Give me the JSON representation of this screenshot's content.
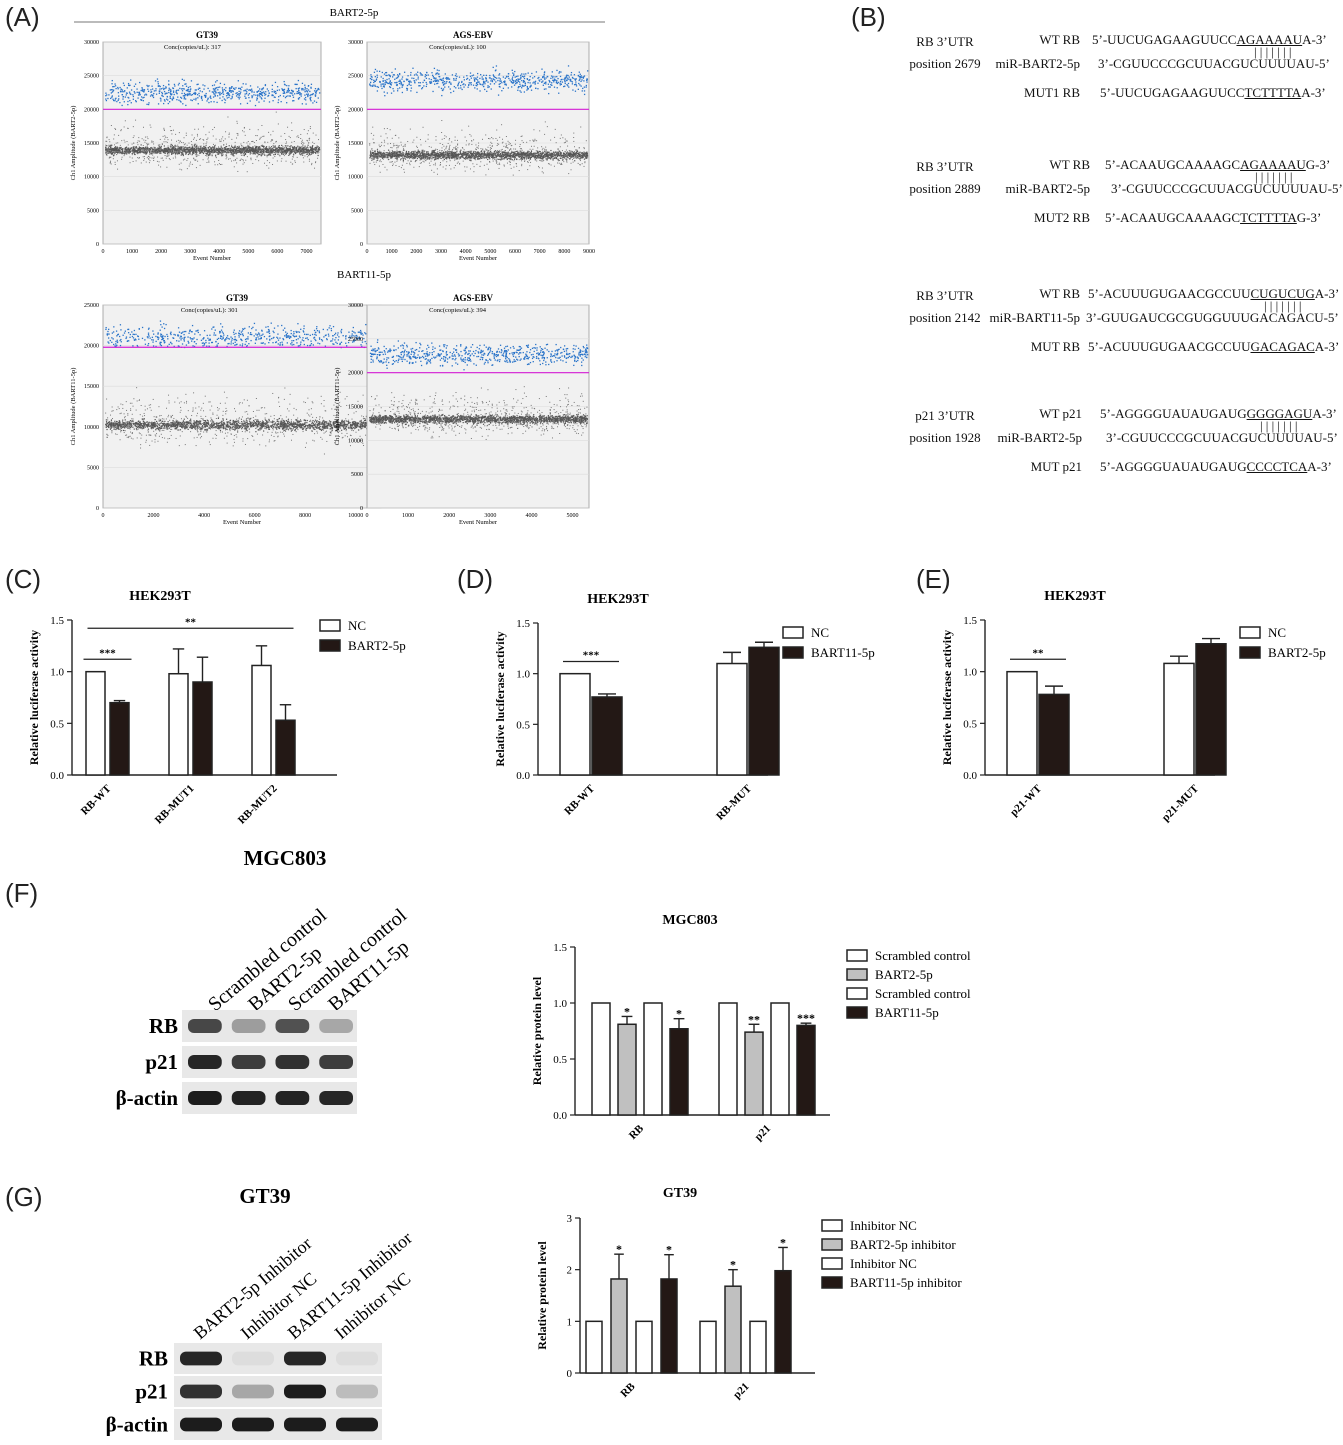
{
  "panels": {
    "A": "(A)",
    "B": "(B)",
    "C": "(C)",
    "D": "(D)",
    "E": "(E)",
    "F": "(F)",
    "G": "(G)"
  },
  "ddpcr": {
    "top_header": "BART2-5p",
    "bottom_header": "BART11-5p",
    "ylabel_top": "Ch1 Amplitude (BART2-5p)",
    "ylabel_bottom": "Ch1 Amplitude (BART11-5p)",
    "xlabel": "Event Number",
    "plots": [
      {
        "title": "GT39",
        "conc": "Conc(copies/uL): 317",
        "yticks": [
          "0",
          "5000",
          "10000",
          "15000",
          "20000",
          "25000",
          "30000"
        ],
        "xticks": [
          "0",
          "1000",
          "2000",
          "3000",
          "4000",
          "5000",
          "6000",
          "7000"
        ]
      },
      {
        "title": "AGS-EBV",
        "conc": "Conc(copies/uL): 100",
        "yticks": [
          "0",
          "5000",
          "10000",
          "15000",
          "20000",
          "25000",
          "30000"
        ],
        "xticks": [
          "0",
          "1000",
          "2000",
          "3000",
          "4000",
          "5000",
          "6000",
          "7000",
          "8000",
          "9000"
        ]
      },
      {
        "title": "GT39",
        "conc": "Conc(copies/uL): 301",
        "yticks": [
          "0",
          "5000",
          "10000",
          "15000",
          "20000",
          "25000"
        ],
        "xticks": [
          "0",
          "2000",
          "4000",
          "6000",
          "8000",
          "10000"
        ]
      },
      {
        "title": "AGS-EBV",
        "conc": "Conc(copies/uL): 394",
        "yticks": [
          "0",
          "5000",
          "10000",
          "15000",
          "20000",
          "25000",
          "30000"
        ],
        "xticks": [
          "0",
          "1000",
          "2000",
          "3000",
          "4000",
          "5000"
        ]
      }
    ]
  },
  "sequences": [
    {
      "utr": "RB 3’UTR",
      "pos": "position 2679",
      "rows": [
        {
          "label": "WT RB",
          "pre": "5’-UUCUGAGAAGUUCC",
          "u": "AGAAAAU",
          "post": "A-3’"
        },
        {
          "label": "miR-BART2-5p",
          "pre": "3’-CGUUCCCGCUUACGUCUUUUAU-5’",
          "u": "",
          "post": ""
        },
        {
          "label": "MUT1 RB",
          "pre": "5’-UUCUGAGAAGUUCC",
          "u": "TCTTTTA",
          "post": "A-3’"
        }
      ]
    },
    {
      "utr": "RB 3’UTR",
      "pos": "position 2889",
      "rows": [
        {
          "label": "WT RB",
          "pre": "5’-ACAAUGCAAAAGC",
          "u": "AGAAAAU",
          "post": "G-3’"
        },
        {
          "label": "miR-BART2-5p",
          "pre": "3’-CGUUCCCGCUUACGUCUUUUAU-5’",
          "u": "",
          "post": ""
        },
        {
          "label": "MUT2 RB",
          "pre": "5’-ACAAUGCAAAAGC",
          "u": "TCTTTTA",
          "post": "G-3’"
        }
      ]
    },
    {
      "utr": "RB 3’UTR",
      "pos": "position 2142",
      "rows": [
        {
          "label": "WT RB",
          "pre": "5’-ACUUUGUGAACGCCUU",
          "u": "CUGUCUG",
          "post": "A-3’"
        },
        {
          "label": "miR-BART11-5p",
          "pre": "3’-GUUGAUCGCGUGGUUUGACAGACU-5’",
          "u": "",
          "post": ""
        },
        {
          "label": "MUT RB",
          "pre": "5’-ACUUUGUGAACGCCUU",
          "u": "GACAGAC",
          "post": "A-3’"
        }
      ]
    },
    {
      "utr": "p21 3’UTR",
      "pos": "position 1928",
      "rows": [
        {
          "label": "WT p21",
          "pre": "5’-AGGGGUAUAUGAUG",
          "u": "GGGGAGU",
          "post": "A-3’"
        },
        {
          "label": "miR-BART2-5p",
          "pre": "3’-CGUUCCCGCUUACGUCUUUUAU-5’",
          "u": "",
          "post": ""
        },
        {
          "label": "MUT p21",
          "pre": "5’-AGGGGUAUAUGAUG",
          "u": "CCCCTCA",
          "post": "A-3’"
        }
      ]
    }
  ],
  "blots": {
    "F": {
      "title": "MGC803",
      "lanes": [
        "Scrambled control",
        "BART2-5p",
        "Scrambled control",
        "BART11-5p"
      ],
      "rows": [
        "RB",
        "p21",
        "β-actin"
      ]
    },
    "G": {
      "title": "GT39",
      "lanes": [
        "BART2-5p Inhibitor",
        "Inhibitor NC",
        "BART11-5p Inhibitor",
        "Inhibitor NC"
      ],
      "rows": [
        "RB",
        "p21",
        "β-actin"
      ]
    }
  },
  "chart_data": [
    {
      "id": "C",
      "type": "bar",
      "title": "HEK293T",
      "ylabel": "Relative luciferase activity",
      "xlabel": "",
      "categories": [
        "RB-WT",
        "RB-MUT1",
        "RB-MUT2"
      ],
      "ylim": [
        0,
        1.5
      ],
      "yticks": [
        "0.0",
        "0.5",
        "1.0",
        "1.5"
      ],
      "series": [
        {
          "name": "NC",
          "values": [
            1.0,
            0.98,
            1.06
          ],
          "errors": [
            0,
            0.24,
            0.19
          ],
          "color": "#ffffff"
        },
        {
          "name": "BART2-5p",
          "values": [
            0.7,
            0.9,
            0.53
          ],
          "errors": [
            0.02,
            0.24,
            0.15
          ],
          "color": "#231815"
        }
      ],
      "annotations": [
        {
          "text": "***",
          "from": [
            0,
            0
          ],
          "to": [
            0,
            1
          ],
          "y": 1.12
        },
        {
          "text": "**",
          "from": [
            0,
            0
          ],
          "to": [
            2,
            1
          ],
          "y": 1.42
        }
      ],
      "legend": "right"
    },
    {
      "id": "D",
      "type": "bar",
      "title": "HEK293T",
      "ylabel": "Relative luciferase activity",
      "xlabel": "",
      "categories": [
        "RB-WT",
        "RB-MUT"
      ],
      "ylim": [
        0,
        1.5
      ],
      "yticks": [
        "0.0",
        "0.5",
        "1.0",
        "1.5"
      ],
      "series": [
        {
          "name": "NC",
          "values": [
            1.0,
            1.1
          ],
          "errors": [
            0,
            0.11
          ],
          "color": "#ffffff"
        },
        {
          "name": "BART11-5p",
          "values": [
            0.77,
            1.26
          ],
          "errors": [
            0.03,
            0.05
          ],
          "color": "#231815"
        }
      ],
      "annotations": [
        {
          "text": "***",
          "from": [
            0,
            0
          ],
          "to": [
            0,
            1
          ],
          "y": 1.12
        }
      ],
      "legend": "right"
    },
    {
      "id": "E",
      "type": "bar",
      "title": "HEK293T",
      "ylabel": "Relative luciferase activity",
      "xlabel": "",
      "categories": [
        "p21-WT",
        "p21-MUT"
      ],
      "ylim": [
        0,
        1.5
      ],
      "yticks": [
        "0.0",
        "0.5",
        "1.0",
        "1.5"
      ],
      "series": [
        {
          "name": "NC",
          "values": [
            1.0,
            1.08
          ],
          "errors": [
            0,
            0.07
          ],
          "color": "#ffffff"
        },
        {
          "name": "BART2-5p",
          "values": [
            0.78,
            1.27
          ],
          "errors": [
            0.08,
            0.05
          ],
          "color": "#231815"
        }
      ],
      "annotations": [
        {
          "text": "**",
          "from": [
            0,
            0
          ],
          "to": [
            0,
            1
          ],
          "y": 1.12
        }
      ],
      "legend": "right"
    },
    {
      "id": "F",
      "type": "bar",
      "title": "MGC803",
      "ylabel": "Relative protein level",
      "xlabel": "",
      "categories": [
        "RB",
        "p21"
      ],
      "ylim": [
        0,
        1.5
      ],
      "yticks": [
        "0.0",
        "0.5",
        "1.0",
        "1.5"
      ],
      "series": [
        {
          "name": "Scrambled control",
          "values": [
            1.0,
            1.0
          ],
          "errors": [
            0,
            0
          ],
          "color": "#ffffff"
        },
        {
          "name": "BART2-5p",
          "values": [
            0.81,
            0.74
          ],
          "errors": [
            0.07,
            0.07
          ],
          "color": "#c0c0c0"
        },
        {
          "name": "Scrambled control",
          "values": [
            1.0,
            1.0
          ],
          "errors": [
            0,
            0
          ],
          "color": "#ffffff"
        },
        {
          "name": "BART11-5p",
          "values": [
            0.77,
            0.8
          ],
          "errors": [
            0.09,
            0.02
          ],
          "color": "#231815"
        }
      ],
      "bar_labels": [
        [
          "",
          ""
        ],
        [
          "*",
          "**"
        ],
        [
          "",
          ""
        ],
        [
          "*",
          "***"
        ]
      ],
      "legend": "right"
    },
    {
      "id": "G",
      "type": "bar",
      "title": "GT39",
      "ylabel": "Relative protein level",
      "xlabel": "",
      "categories": [
        "RB",
        "p21"
      ],
      "ylim": [
        0,
        3
      ],
      "yticks": [
        "0",
        "1",
        "2",
        "3"
      ],
      "series": [
        {
          "name": "Inhibitor NC",
          "values": [
            1.0,
            1.0
          ],
          "errors": [
            0,
            0
          ],
          "color": "#ffffff"
        },
        {
          "name": "BART2-5p inhibitor",
          "values": [
            1.82,
            1.68
          ],
          "errors": [
            0.48,
            0.32
          ],
          "color": "#c0c0c0"
        },
        {
          "name": "Inhibitor NC",
          "values": [
            1.0,
            1.0
          ],
          "errors": [
            0,
            0
          ],
          "color": "#ffffff"
        },
        {
          "name": "BART11-5p inhibitor",
          "values": [
            1.82,
            1.98
          ],
          "errors": [
            0.47,
            0.45
          ],
          "color": "#231815"
        }
      ],
      "bar_labels": [
        [
          "",
          ""
        ],
        [
          "*",
          "*"
        ],
        [
          "",
          ""
        ],
        [
          "*",
          "*"
        ]
      ],
      "legend": "right"
    }
  ]
}
